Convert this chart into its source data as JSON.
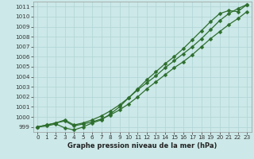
{
  "xlabel": "Graphe pression niveau de la mer (hPa)",
  "xlim": [
    -0.5,
    23.5
  ],
  "ylim": [
    998.5,
    1011.5
  ],
  "yticks": [
    999,
    1000,
    1001,
    1002,
    1003,
    1004,
    1005,
    1006,
    1007,
    1008,
    1009,
    1010,
    1011
  ],
  "xticks": [
    0,
    1,
    2,
    3,
    4,
    5,
    6,
    7,
    8,
    9,
    10,
    11,
    12,
    13,
    14,
    15,
    16,
    17,
    18,
    19,
    20,
    21,
    22,
    23
  ],
  "bg_color": "#cce8e8",
  "grid_color": "#b0d4d4",
  "line_color": "#2d6e2d",
  "series1_y": [
    999.0,
    999.2,
    999.4,
    999.6,
    999.1,
    999.3,
    999.5,
    999.8,
    1000.2,
    1000.7,
    1001.3,
    1002.0,
    1002.8,
    1003.5,
    1004.2,
    1004.9,
    1005.5,
    1006.2,
    1007.0,
    1007.8,
    1008.5,
    1009.2,
    1009.8,
    1010.5
  ],
  "series2_y": [
    999.0,
    999.2,
    999.4,
    999.7,
    999.2,
    999.4,
    999.7,
    1000.1,
    1000.6,
    1001.2,
    1001.9,
    1002.7,
    1003.4,
    1004.1,
    1004.9,
    1005.6,
    1006.3,
    1007.0,
    1007.8,
    1008.7,
    1009.6,
    1010.3,
    1010.8,
    1011.2
  ],
  "series3_y": [
    999.0,
    999.1,
    999.3,
    998.9,
    998.7,
    999.0,
    999.4,
    999.7,
    1000.3,
    1001.0,
    1001.9,
    1002.8,
    1003.7,
    1004.5,
    1005.3,
    1006.0,
    1006.8,
    1007.7,
    1008.6,
    1009.5,
    1010.3,
    1010.6,
    1010.5,
    1011.2
  ],
  "markersize": 2.5,
  "linewidth": 0.9,
  "label_fontsize": 6.0,
  "tick_fontsize": 5.2
}
